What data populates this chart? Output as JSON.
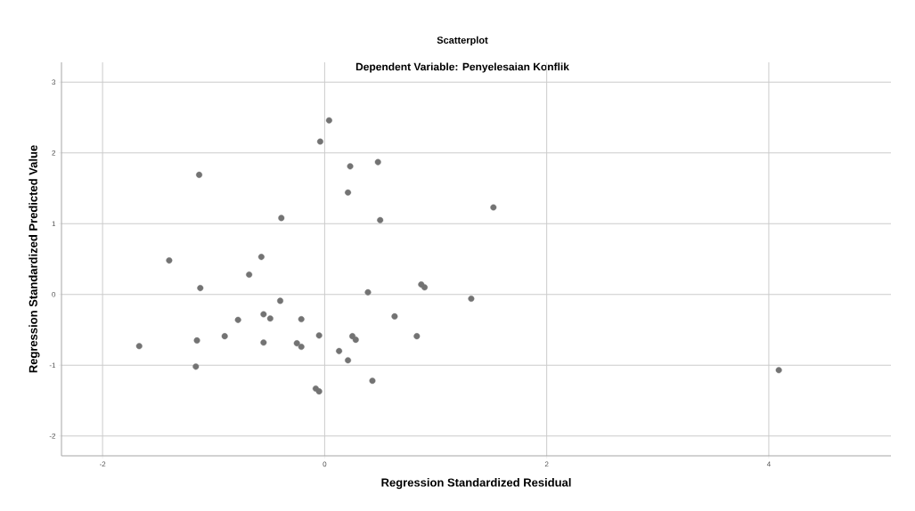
{
  "chart_data": {
    "type": "scatter",
    "title": "Scatterplot",
    "subtitle": "Dependent Variable: Penyelesaian Konflik",
    "xlabel": "Regression Standardized Residual",
    "ylabel": "Regression Standardized Predicted Value",
    "x": [
      -1.67,
      -1.4,
      -1.13,
      -1.12,
      -1.15,
      -1.16,
      -0.9,
      -0.78,
      -0.68,
      -0.57,
      -0.55,
      -0.49,
      -0.55,
      -0.4,
      -0.39,
      -0.21,
      -0.25,
      -0.21,
      -0.05,
      -0.08,
      -0.05,
      -0.04,
      0.04,
      0.13,
      0.21,
      0.21,
      0.23,
      0.25,
      0.28,
      0.39,
      0.43,
      0.48,
      0.5,
      0.63,
      0.83,
      0.87,
      0.9,
      1.32,
      1.52,
      4.09
    ],
    "values": [
      -0.73,
      0.48,
      1.69,
      0.09,
      -0.65,
      -1.02,
      -0.59,
      -0.36,
      0.28,
      0.53,
      -0.28,
      -0.34,
      -0.68,
      -0.09,
      1.08,
      -0.35,
      -0.69,
      -0.74,
      -0.58,
      -1.33,
      -1.37,
      2.16,
      2.46,
      -0.8,
      -0.93,
      1.44,
      1.81,
      -0.59,
      -0.64,
      0.03,
      -1.22,
      1.87,
      1.05,
      -0.31,
      -0.59,
      0.14,
      0.1,
      -0.06,
      1.23,
      -1.07
    ],
    "color": "#737373",
    "marker": "circle",
    "grid": true,
    "xlim": [
      -2.37,
      5.1
    ],
    "ylim": [
      -2.28,
      3.28
    ],
    "xticks": [
      -2,
      0,
      2,
      4
    ],
    "yticks": [
      -2,
      -1,
      0,
      1,
      2,
      3
    ]
  }
}
